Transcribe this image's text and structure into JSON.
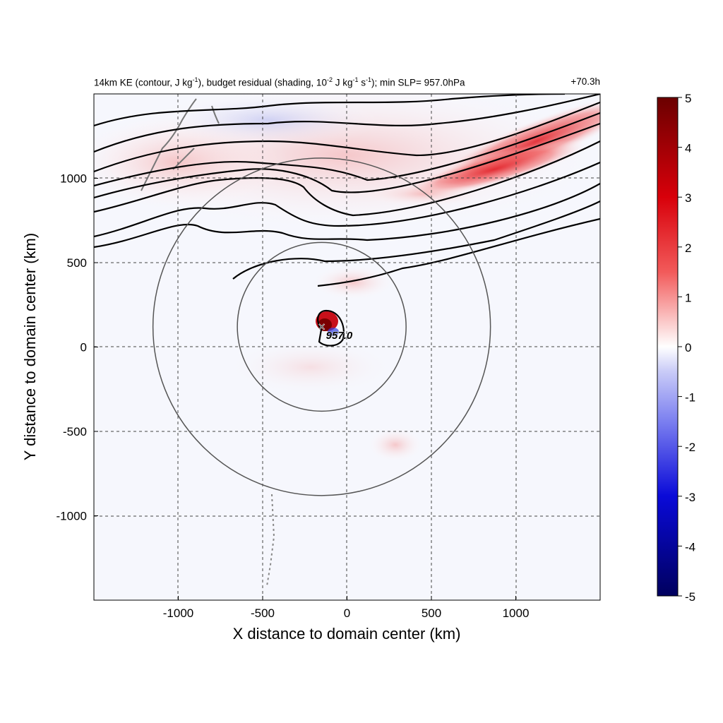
{
  "title": {
    "part1": "14km KE (contour, J kg",
    "exp1": "-1",
    "part2": "), budget residual (shading, 10",
    "exp2": "-2",
    "part3": " J kg",
    "exp3": "-1",
    "part4": " s",
    "exp4": "-1",
    "part5": "); min SLP= 957.0hPa",
    "right": "+70.3h"
  },
  "colors": {
    "positive": "#e8141c",
    "negative": "#1f2ee0",
    "contour": "#000000",
    "coast": "#777777",
    "circle": "#555555"
  },
  "chart_data": {
    "type": "heatmap",
    "xlabel": "X distance to domain center (km)",
    "ylabel": "Y distance to domain center (km)",
    "xlim": [
      -1500,
      1500
    ],
    "ylim": [
      -1500,
      1500
    ],
    "xticks": [
      -1000,
      -500,
      0,
      500,
      1000
    ],
    "yticks": [
      -1000,
      -500,
      0,
      500,
      1000
    ],
    "grid": true,
    "colorbar": {
      "min": -5,
      "max": 5,
      "ticks": [
        5,
        4,
        3,
        2,
        1,
        0,
        -1,
        -2,
        -3,
        -4,
        -5
      ],
      "cmap": "blue-white-red"
    },
    "storm_center": {
      "x": -150,
      "y": 120,
      "label": "957.0",
      "marker": "×"
    },
    "range_circles": [
      {
        "x": -150,
        "y": 120,
        "radius_km": 500
      },
      {
        "x": -150,
        "y": 120,
        "radius_km": 1000
      }
    ],
    "features": [
      "KE contours forming a northern jet band",
      "strong positive residual in the northeast jet",
      "positive/negative residual at the storm core"
    ]
  }
}
